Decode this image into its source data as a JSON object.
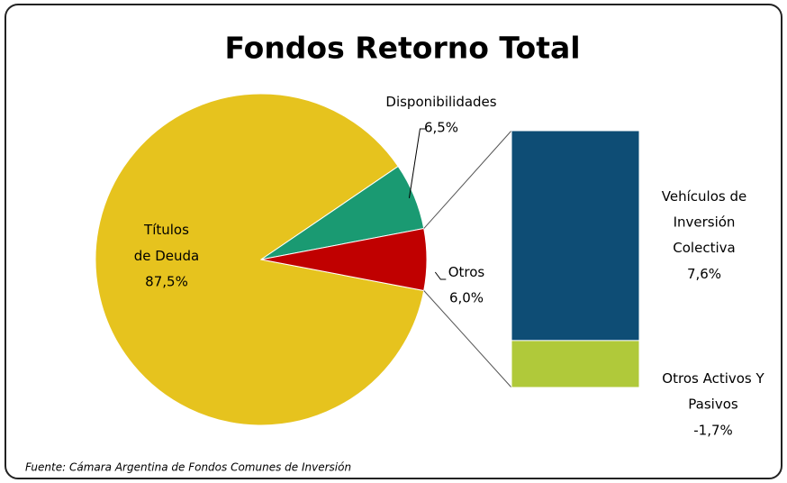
{
  "chart_data": {
    "type": "pie-of-bar",
    "title": "Fondos Retorno Total",
    "source": "Fuente:  Cámara Argentina de Fondos Comunes de Inversión",
    "categories": [
      "Títulos de Deuda",
      "Disponibilidades",
      "Otros"
    ],
    "values": [
      87.5,
      6.5,
      6.0
    ],
    "value_labels": [
      "87,5%",
      "6,5%",
      "6,0%"
    ],
    "colors": [
      "#e6c31e",
      "#1a9a72",
      "#c00000"
    ],
    "bar": {
      "categories": [
        "Vehículos de Inversión Colectiva",
        "Otros Activos Y Pasivos"
      ],
      "values": [
        7.6,
        -1.7
      ],
      "value_labels": [
        "7,6%",
        "-1,7%"
      ],
      "colors": [
        "#0e4d75",
        "#b0c93a"
      ]
    }
  }
}
